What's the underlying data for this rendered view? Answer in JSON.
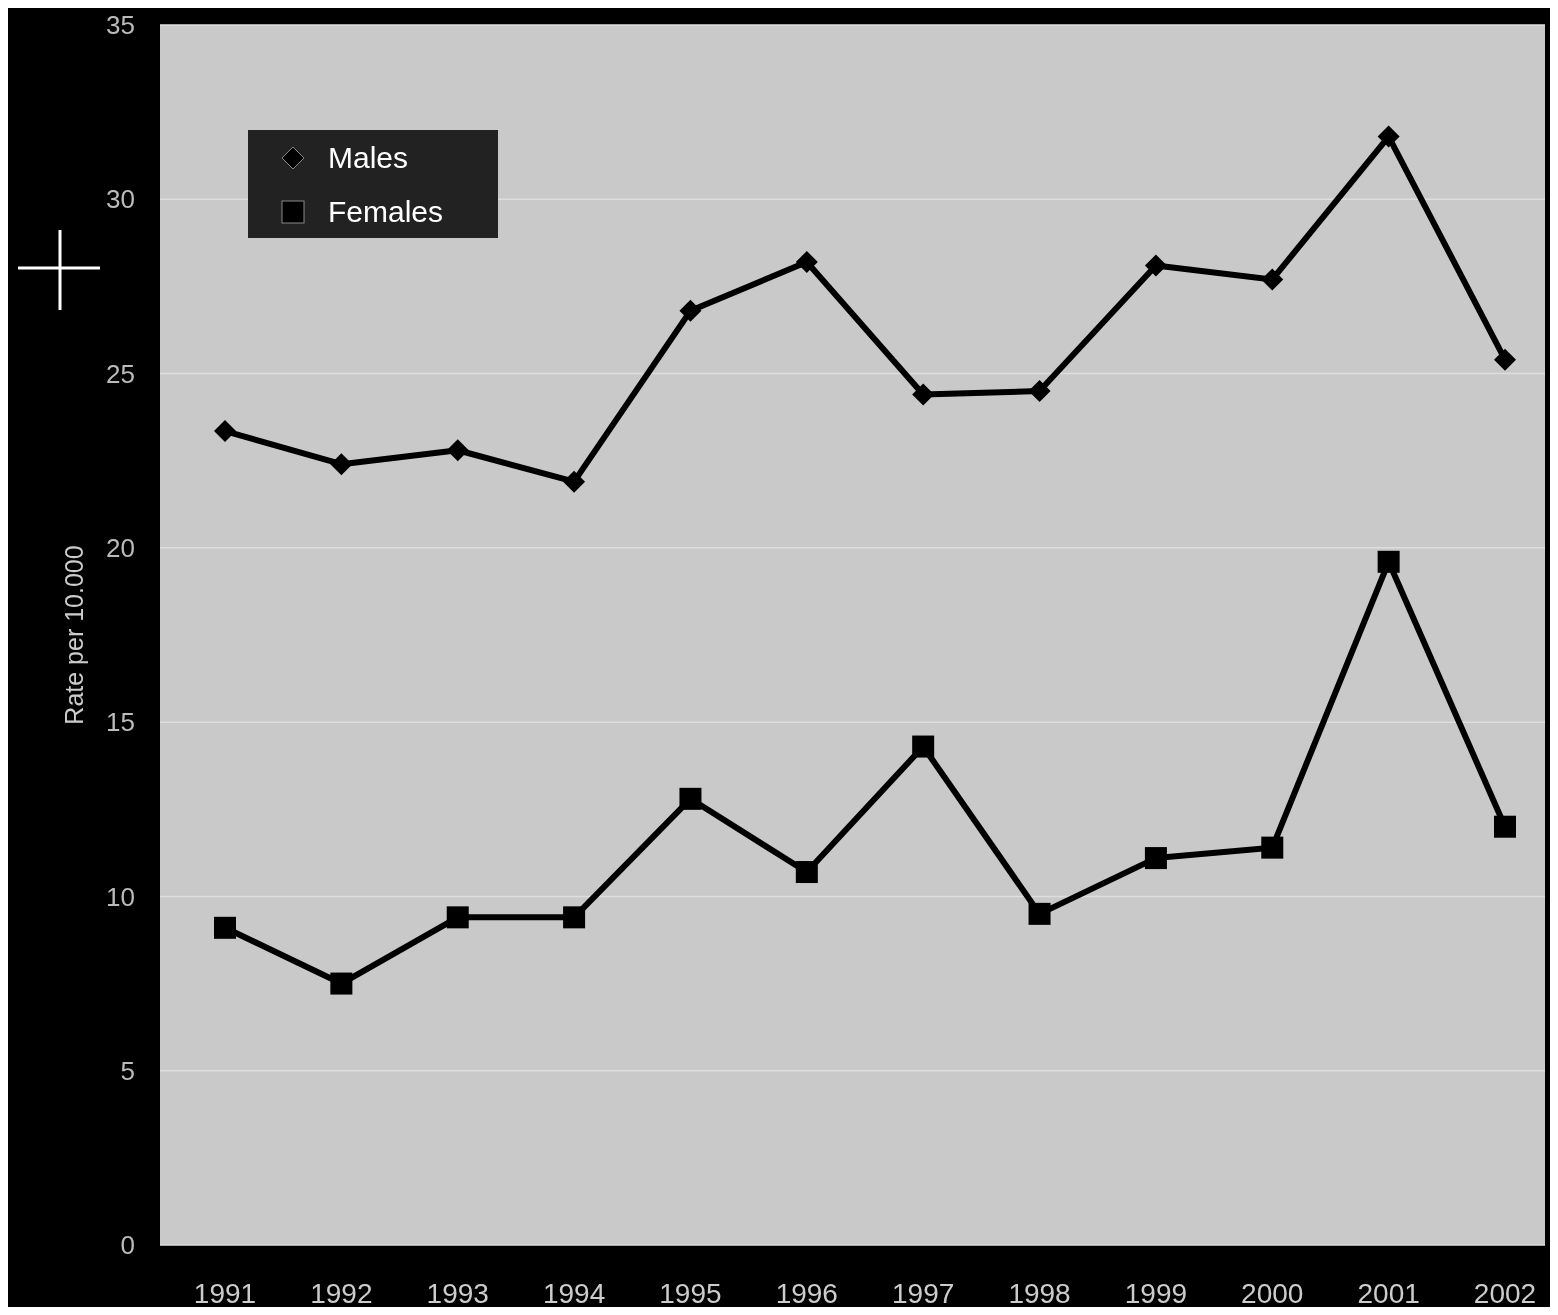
{
  "chart_data": {
    "type": "line",
    "ylabel": "Rate per 10.000",
    "categories": [
      "1991",
      "1992",
      "1993",
      "1994",
      "1995",
      "1996",
      "1997",
      "1998",
      "1999",
      "2000",
      "2001",
      "2002"
    ],
    "series": [
      {
        "name": "Males",
        "color": "#000000",
        "marker": "diamond",
        "values": [
          23.35,
          22.4,
          22.8,
          21.9,
          26.8,
          28.2,
          24.4,
          24.5,
          28.1,
          27.7,
          31.8,
          25.4
        ]
      },
      {
        "name": "Females",
        "color": "#000000",
        "marker": "square",
        "values": [
          9.1,
          7.5,
          9.4,
          9.4,
          12.8,
          10.7,
          14.3,
          9.5,
          11.1,
          11.4,
          19.6,
          12.0
        ]
      }
    ],
    "ylim": [
      0,
      35
    ],
    "yticks": [
      0,
      5,
      10,
      15,
      20,
      25,
      30,
      35
    ],
    "grid": "y",
    "legend": "top left",
    "line_style": "solid"
  }
}
